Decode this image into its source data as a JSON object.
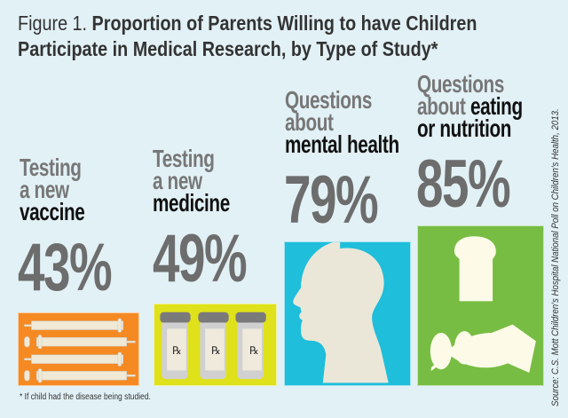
{
  "title": {
    "prefix": "Figure 1.",
    "line1": "Proportion of Parents Willing to have Children",
    "line2": "Participate in Medical Research, by Type of Study*"
  },
  "columns": [
    {
      "lines": [
        "Testing",
        "a new"
      ],
      "key": "vaccine",
      "value_label": "43%",
      "color": "#f58a23",
      "icon": "syringe-icon"
    },
    {
      "lines": [
        "Testing",
        "a new"
      ],
      "key": "medicine",
      "value_label": "49%",
      "color": "#dfe11b",
      "icon": "pill-bottle-icon"
    },
    {
      "lines": [
        "Questions",
        "about"
      ],
      "key": "mental health",
      "value_label": "79%",
      "color": "#1fbedb",
      "icon": "head-silhouette-icon"
    },
    {
      "lines": [
        "Questions"
      ],
      "line2_prefix": "about ",
      "key": "eating",
      "key2": "or nutrition",
      "value_label": "85%",
      "color": "#77bd43",
      "icon": "food-icon"
    }
  ],
  "rx_label": "℞",
  "footnote": "* If child had the disease being studied.",
  "source": "Source: C.S. Mott Children's Hospital National Poll on Children's Health, 2013.",
  "chart_data": {
    "type": "bar",
    "title": "Figure 1. Proportion of Parents Willing to have Children Participate in Medical Research, by Type of Study*",
    "categories": [
      "Testing a new vaccine",
      "Testing a new medicine",
      "Questions about mental health",
      "Questions about eating or nutrition"
    ],
    "values": [
      43,
      49,
      79,
      85
    ],
    "unit": "%"
  }
}
